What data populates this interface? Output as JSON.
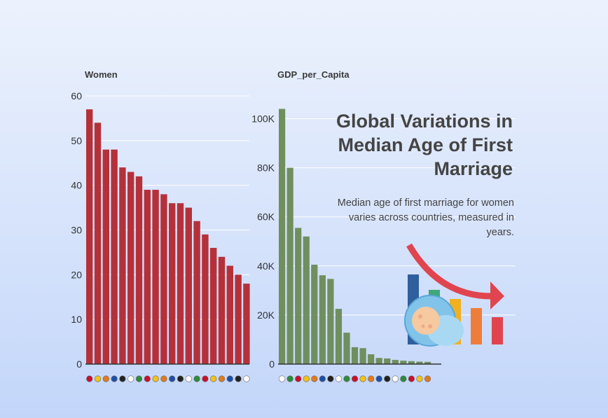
{
  "title": "Global Variations in Median Age of First Marriage",
  "subtitle": "Median age of first marriage for women varies across countries, measured in years.",
  "chart_data": [
    {
      "type": "bar",
      "title": "Women",
      "ylim": [
        0,
        60
      ],
      "yticks": [
        "0",
        "10",
        "20",
        "30",
        "40",
        "50",
        "60"
      ],
      "values": [
        57,
        54,
        48,
        48,
        44,
        43,
        42,
        39,
        39,
        38,
        36,
        36,
        35,
        32,
        29,
        26,
        24,
        22,
        20,
        18
      ],
      "color": "#b5313a",
      "grid": true
    },
    {
      "type": "bar",
      "title": "GDP_per_Capita",
      "ylim": [
        0,
        105000
      ],
      "yticks": [
        "0",
        "20K",
        "40K",
        "60K",
        "80K",
        "100K"
      ],
      "values": [
        104000,
        80000,
        55500,
        52000,
        40500,
        36200,
        34700,
        22500,
        12800,
        6900,
        6500,
        4000,
        2500,
        2300,
        1700,
        1400,
        1200,
        1000,
        900
      ],
      "color": "#6f8f5e",
      "grid": true
    }
  ],
  "colors": {
    "women_bars": "#b5313a",
    "gdp_bars": "#6f8f5e",
    "arrow": "#e0454f",
    "title_text": "#444444"
  },
  "decoration": {
    "icon": "baby-and-bar-chart-icon",
    "bar_colors": [
      "#2f5f9c",
      "#3fa77a",
      "#f0b020",
      "#ef7d3a",
      "#e0454f"
    ]
  }
}
